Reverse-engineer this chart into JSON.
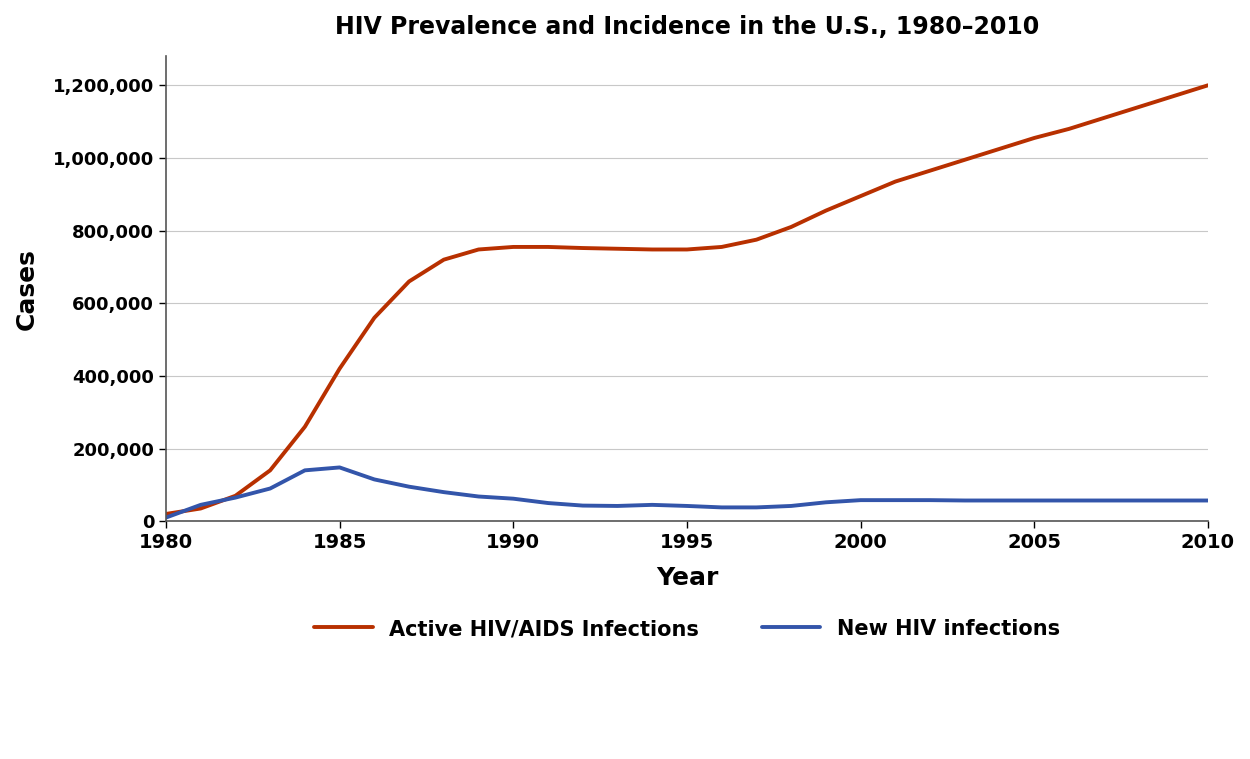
{
  "title": "HIV Prevalence and Incidence in the U.S., 1980–2010",
  "xlabel": "Year",
  "ylabel": "Cases",
  "background_color": "#ffffff",
  "grid_color": "#c8c8c8",
  "prevalence_color": "#b83000",
  "incidence_color": "#3355aa",
  "prevalence_label": "Active HIV/AIDS Infections",
  "incidence_label": "New HIV infections",
  "line_width": 2.8,
  "ylim": [
    0,
    1280000
  ],
  "xlim": [
    1980,
    2010
  ],
  "yticks": [
    0,
    200000,
    400000,
    600000,
    800000,
    1000000,
    1200000
  ],
  "xticks": [
    1980,
    1985,
    1990,
    1995,
    2000,
    2005,
    2010
  ],
  "prevalence_years": [
    1980,
    1981,
    1982,
    1983,
    1984,
    1985,
    1986,
    1987,
    1988,
    1989,
    1990,
    1991,
    1992,
    1993,
    1994,
    1995,
    1996,
    1997,
    1998,
    1999,
    2000,
    2001,
    2002,
    2003,
    2004,
    2005,
    2006,
    2007,
    2008,
    2009,
    2010
  ],
  "prevalence_values": [
    20000,
    35000,
    70000,
    140000,
    260000,
    420000,
    560000,
    660000,
    720000,
    748000,
    755000,
    755000,
    752000,
    750000,
    748000,
    748000,
    755000,
    775000,
    810000,
    855000,
    895000,
    935000,
    965000,
    995000,
    1025000,
    1055000,
    1080000,
    1110000,
    1140000,
    1170000,
    1200000
  ],
  "incidence_years": [
    1980,
    1981,
    1982,
    1983,
    1984,
    1985,
    1986,
    1987,
    1988,
    1989,
    1990,
    1991,
    1992,
    1993,
    1994,
    1995,
    1996,
    1997,
    1998,
    1999,
    2000,
    2001,
    2002,
    2003,
    2004,
    2005,
    2006,
    2007,
    2008,
    2009,
    2010
  ],
  "incidence_values": [
    10000,
    45000,
    65000,
    90000,
    140000,
    148000,
    115000,
    95000,
    80000,
    68000,
    62000,
    50000,
    43000,
    42000,
    45000,
    42000,
    38000,
    38000,
    42000,
    52000,
    58000,
    58000,
    58000,
    57000,
    57000,
    57000,
    57000,
    57000,
    57000,
    57000,
    57000
  ]
}
